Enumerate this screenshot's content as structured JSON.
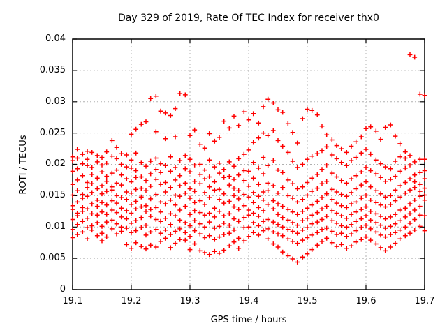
{
  "chart_data": {
    "type": "scatter",
    "title": "Day 329 of 2019, Rate Of TEC Index for receiver thx0",
    "xlabel": "GPS time / hours",
    "ylabel": "ROTI / TECUs",
    "xlim": [
      19.1,
      19.7
    ],
    "ylim": [
      0,
      0.04
    ],
    "xticks": [
      19.1,
      19.2,
      19.3,
      19.4,
      19.5,
      19.6,
      19.7
    ],
    "xtick_labels": [
      "19.1",
      "19.2",
      "19.3",
      "19.4",
      "19.5",
      "19.6",
      "19.7"
    ],
    "yticks": [
      0,
      0.005,
      0.01,
      0.015,
      0.02,
      0.025,
      0.03,
      0.035,
      0.04
    ],
    "ytick_labels": [
      "0",
      "0.005",
      "0.01",
      "0.015",
      "0.02",
      "0.025",
      "0.03",
      "0.035",
      "0.04"
    ],
    "grid": true,
    "legend": "none",
    "marker": "plus",
    "marker_color": "#ff0000",
    "grid_color": "#b0b0b0",
    "border_color": "#000000",
    "columns": [
      {
        "t": 19.1,
        "y": [
          0.0083,
          0.0096,
          0.0112,
          0.0128,
          0.0134,
          0.0151,
          0.0168,
          0.0189,
          0.0212,
          0.0206
        ]
      },
      {
        "t": 19.108,
        "y": [
          0.0088,
          0.0104,
          0.0118,
          0.0122,
          0.014,
          0.0158,
          0.0175,
          0.0193,
          0.021,
          0.0224
        ]
      },
      {
        "t": 19.117,
        "y": [
          0.0092,
          0.0109,
          0.0125,
          0.0131,
          0.0146,
          0.0152,
          0.0182,
          0.0201,
          0.0216
        ]
      },
      {
        "t": 19.125,
        "y": [
          0.0081,
          0.0099,
          0.0114,
          0.0129,
          0.0149,
          0.0163,
          0.0171,
          0.0198,
          0.0208,
          0.0221
        ]
      },
      {
        "t": 19.133,
        "y": [
          0.0095,
          0.0102,
          0.0121,
          0.0137,
          0.0155,
          0.0169,
          0.0184,
          0.0195,
          0.0219
        ]
      },
      {
        "t": 19.142,
        "y": [
          0.0086,
          0.0107,
          0.0119,
          0.0133,
          0.0143,
          0.0161,
          0.0178,
          0.0204,
          0.0214
        ]
      },
      {
        "t": 19.15,
        "y": [
          0.0078,
          0.009,
          0.0101,
          0.0124,
          0.0139,
          0.0153,
          0.0166,
          0.0188,
          0.0199,
          0.0211
        ]
      },
      {
        "t": 19.158,
        "y": [
          0.0084,
          0.0108,
          0.012,
          0.0135,
          0.0157,
          0.0173,
          0.0181,
          0.0202,
          0.022
        ]
      },
      {
        "t": 19.167,
        "y": [
          0.0097,
          0.0111,
          0.0127,
          0.0142,
          0.0159,
          0.0164,
          0.0186,
          0.0213,
          0.0238
        ]
      },
      {
        "t": 19.175,
        "y": [
          0.0089,
          0.0105,
          0.0123,
          0.0138,
          0.015,
          0.017,
          0.0191,
          0.0209,
          0.0227
        ]
      },
      {
        "t": 19.183,
        "y": [
          0.0093,
          0.01,
          0.0116,
          0.013,
          0.0147,
          0.0167,
          0.0183,
          0.02,
          0.0217
        ]
      },
      {
        "t": 19.192,
        "y": [
          0.0072,
          0.0098,
          0.0113,
          0.0126,
          0.0144,
          0.0156,
          0.0177,
          0.0196,
          0.0215
        ]
      },
      {
        "t": 19.2,
        "y": [
          0.0066,
          0.0091,
          0.0106,
          0.0122,
          0.0136,
          0.0154,
          0.0172,
          0.0194,
          0.0207,
          0.0248
        ]
      },
      {
        "t": 19.208,
        "y": [
          0.0075,
          0.0094,
          0.011,
          0.0129,
          0.0141,
          0.016,
          0.0179,
          0.019,
          0.0218,
          0.0256
        ]
      },
      {
        "t": 19.217,
        "y": [
          0.0069,
          0.0099,
          0.0115,
          0.0132,
          0.0148,
          0.0162,
          0.018,
          0.0203,
          0.0264
        ]
      },
      {
        "t": 19.225,
        "y": [
          0.0065,
          0.0087,
          0.0103,
          0.0125,
          0.0134,
          0.0158,
          0.0174,
          0.0197,
          0.0268
        ]
      },
      {
        "t": 19.233,
        "y": [
          0.0071,
          0.0092,
          0.0117,
          0.0128,
          0.0145,
          0.0165,
          0.0185,
          0.0205,
          0.0305
        ]
      },
      {
        "t": 19.242,
        "y": [
          0.0068,
          0.0096,
          0.0112,
          0.0131,
          0.0152,
          0.0176,
          0.0192,
          0.021,
          0.0309,
          0.0252
        ]
      },
      {
        "t": 19.25,
        "y": [
          0.0077,
          0.009,
          0.0109,
          0.0124,
          0.014,
          0.0168,
          0.0187,
          0.0201,
          0.0285
        ]
      },
      {
        "t": 19.258,
        "y": [
          0.0082,
          0.0095,
          0.0114,
          0.0137,
          0.0156,
          0.0171,
          0.0198,
          0.0282,
          0.0241
        ]
      },
      {
        "t": 19.267,
        "y": [
          0.0067,
          0.0088,
          0.0104,
          0.0121,
          0.0143,
          0.0163,
          0.0189,
          0.0212,
          0.0278
        ]
      },
      {
        "t": 19.275,
        "y": [
          0.0074,
          0.0093,
          0.0118,
          0.0135,
          0.0151,
          0.0175,
          0.0195,
          0.0244,
          0.0289
        ]
      },
      {
        "t": 19.283,
        "y": [
          0.008,
          0.0097,
          0.0111,
          0.0127,
          0.0149,
          0.0166,
          0.0182,
          0.0206,
          0.0313
        ]
      },
      {
        "t": 19.292,
        "y": [
          0.0079,
          0.0091,
          0.0107,
          0.0133,
          0.0154,
          0.017,
          0.0193,
          0.0214,
          0.0311
        ]
      },
      {
        "t": 19.3,
        "y": [
          0.0064,
          0.0085,
          0.0102,
          0.012,
          0.0146,
          0.0161,
          0.0188,
          0.0208,
          0.0246
        ]
      },
      {
        "t": 19.308,
        "y": [
          0.0073,
          0.0094,
          0.011,
          0.0126,
          0.0139,
          0.0157,
          0.0173,
          0.0199,
          0.0255
        ]
      },
      {
        "t": 19.317,
        "y": [
          0.0062,
          0.0089,
          0.0105,
          0.0123,
          0.0142,
          0.0169,
          0.0184,
          0.02,
          0.0232
        ]
      },
      {
        "t": 19.325,
        "y": [
          0.0059,
          0.0083,
          0.01,
          0.0119,
          0.0136,
          0.0155,
          0.0177,
          0.0191,
          0.0226
        ]
      },
      {
        "t": 19.333,
        "y": [
          0.0056,
          0.0086,
          0.0108,
          0.0122,
          0.0147,
          0.0164,
          0.018,
          0.0207,
          0.0249
        ]
      },
      {
        "t": 19.342,
        "y": [
          0.0061,
          0.008,
          0.0098,
          0.0116,
          0.013,
          0.0159,
          0.0172,
          0.0196,
          0.0237
        ]
      },
      {
        "t": 19.35,
        "y": [
          0.0058,
          0.0084,
          0.0101,
          0.0125,
          0.0144,
          0.016,
          0.0186,
          0.0202,
          0.0243
        ]
      },
      {
        "t": 19.358,
        "y": [
          0.0063,
          0.0088,
          0.0106,
          0.0118,
          0.0138,
          0.0153,
          0.0179,
          0.0192,
          0.0269
        ]
      },
      {
        "t": 19.367,
        "y": [
          0.007,
          0.009,
          0.0103,
          0.0121,
          0.0141,
          0.0167,
          0.0181,
          0.0204,
          0.0258
        ]
      },
      {
        "t": 19.375,
        "y": [
          0.0076,
          0.0095,
          0.0113,
          0.0132,
          0.015,
          0.0162,
          0.0176,
          0.0197,
          0.0277
        ]
      },
      {
        "t": 19.383,
        "y": [
          0.0066,
          0.0082,
          0.0109,
          0.0128,
          0.0145,
          0.0158,
          0.0183,
          0.0209,
          0.0262
        ]
      },
      {
        "t": 19.392,
        "y": [
          0.0078,
          0.0099,
          0.0115,
          0.0134,
          0.0152,
          0.0174,
          0.019,
          0.0216,
          0.0284
        ]
      },
      {
        "t": 19.4,
        "y": [
          0.0085,
          0.01,
          0.0119,
          0.0127,
          0.0148,
          0.0165,
          0.0189,
          0.0223,
          0.0271
        ]
      },
      {
        "t": 19.408,
        "y": [
          0.0091,
          0.0107,
          0.0122,
          0.0139,
          0.0155,
          0.0178,
          0.0203,
          0.0235,
          0.0281
        ]
      },
      {
        "t": 19.417,
        "y": [
          0.0087,
          0.0102,
          0.0117,
          0.0131,
          0.0149,
          0.0168,
          0.0194,
          0.0242,
          0.0266
        ]
      },
      {
        "t": 19.425,
        "y": [
          0.0094,
          0.0109,
          0.0126,
          0.0143,
          0.0156,
          0.0185,
          0.0211,
          0.025,
          0.0292
        ]
      },
      {
        "t": 19.433,
        "y": [
          0.0081,
          0.0097,
          0.0112,
          0.0136,
          0.0158,
          0.017,
          0.0198,
          0.0246,
          0.0304
        ]
      },
      {
        "t": 19.442,
        "y": [
          0.0073,
          0.0092,
          0.0108,
          0.0129,
          0.0142,
          0.0166,
          0.0206,
          0.0254,
          0.0298
        ]
      },
      {
        "t": 19.45,
        "y": [
          0.0068,
          0.0089,
          0.0104,
          0.012,
          0.0137,
          0.0154,
          0.0191,
          0.0238,
          0.0287
        ]
      },
      {
        "t": 19.458,
        "y": [
          0.006,
          0.0086,
          0.01,
          0.0115,
          0.0133,
          0.0163,
          0.0187,
          0.0229,
          0.0283
        ]
      },
      {
        "t": 19.467,
        "y": [
          0.0054,
          0.0081,
          0.0096,
          0.0111,
          0.0128,
          0.015,
          0.0175,
          0.0219,
          0.0265
        ]
      },
      {
        "t": 19.475,
        "y": [
          0.0049,
          0.0077,
          0.0093,
          0.0107,
          0.0124,
          0.0146,
          0.0169,
          0.0205,
          0.0251
        ]
      },
      {
        "t": 19.483,
        "y": [
          0.0044,
          0.0074,
          0.009,
          0.0103,
          0.012,
          0.014,
          0.0161,
          0.0195,
          0.0234
        ]
      },
      {
        "t": 19.492,
        "y": [
          0.0052,
          0.0079,
          0.0095,
          0.011,
          0.0125,
          0.0144,
          0.0164,
          0.02,
          0.0273
        ]
      },
      {
        "t": 19.5,
        "y": [
          0.0057,
          0.0083,
          0.0099,
          0.0114,
          0.013,
          0.0151,
          0.0171,
          0.0208,
          0.0288
        ]
      },
      {
        "t": 19.508,
        "y": [
          0.0064,
          0.0087,
          0.0105,
          0.0119,
          0.0135,
          0.0157,
          0.0178,
          0.0213,
          0.0286
        ]
      },
      {
        "t": 19.517,
        "y": [
          0.0071,
          0.0091,
          0.0108,
          0.0123,
          0.0141,
          0.0162,
          0.0184,
          0.0217,
          0.0279
        ]
      },
      {
        "t": 19.525,
        "y": [
          0.0077,
          0.0096,
          0.0112,
          0.0129,
          0.0147,
          0.0169,
          0.0192,
          0.0222,
          0.0261
        ]
      },
      {
        "t": 19.533,
        "y": [
          0.0082,
          0.0098,
          0.0117,
          0.0133,
          0.0153,
          0.0173,
          0.0199,
          0.0228,
          0.0247
        ]
      },
      {
        "t": 19.542,
        "y": [
          0.0075,
          0.0093,
          0.011,
          0.0126,
          0.0144,
          0.016,
          0.0186,
          0.0215,
          0.0239
        ]
      },
      {
        "t": 19.55,
        "y": [
          0.0069,
          0.0088,
          0.0106,
          0.0122,
          0.0138,
          0.0156,
          0.018,
          0.0209,
          0.023
        ]
      },
      {
        "t": 19.558,
        "y": [
          0.0072,
          0.009,
          0.0102,
          0.0118,
          0.0134,
          0.0152,
          0.0174,
          0.0203,
          0.0225
        ]
      },
      {
        "t": 19.567,
        "y": [
          0.0066,
          0.0085,
          0.01,
          0.0114,
          0.0131,
          0.0149,
          0.017,
          0.0198,
          0.0219
        ]
      },
      {
        "t": 19.575,
        "y": [
          0.007,
          0.0089,
          0.0104,
          0.012,
          0.0137,
          0.0155,
          0.0177,
          0.0206,
          0.0229
        ]
      },
      {
        "t": 19.583,
        "y": [
          0.0076,
          0.0094,
          0.0109,
          0.0124,
          0.014,
          0.0161,
          0.0182,
          0.0211,
          0.0236
        ]
      },
      {
        "t": 19.592,
        "y": [
          0.008,
          0.0099,
          0.0113,
          0.0128,
          0.0146,
          0.0167,
          0.0188,
          0.0218,
          0.0244
        ]
      },
      {
        "t": 19.6,
        "y": [
          0.0084,
          0.0103,
          0.0118,
          0.0132,
          0.0151,
          0.0172,
          0.0195,
          0.0224,
          0.0257
        ]
      },
      {
        "t": 19.608,
        "y": [
          0.0079,
          0.0097,
          0.0111,
          0.0125,
          0.0143,
          0.0164,
          0.019,
          0.0216,
          0.026
        ]
      },
      {
        "t": 19.617,
        "y": [
          0.0073,
          0.0092,
          0.0107,
          0.0121,
          0.0139,
          0.0158,
          0.0185,
          0.0207,
          0.0253
        ]
      },
      {
        "t": 19.625,
        "y": [
          0.0067,
          0.0087,
          0.0103,
          0.0117,
          0.0135,
          0.0153,
          0.0179,
          0.0201,
          0.024
        ]
      },
      {
        "t": 19.633,
        "y": [
          0.0062,
          0.0084,
          0.0098,
          0.0113,
          0.0132,
          0.0148,
          0.0173,
          0.0196,
          0.0259
        ]
      },
      {
        "t": 19.642,
        "y": [
          0.0068,
          0.0088,
          0.0101,
          0.0116,
          0.0136,
          0.015,
          0.0176,
          0.0193,
          0.0263
        ]
      },
      {
        "t": 19.65,
        "y": [
          0.0074,
          0.0091,
          0.0105,
          0.012,
          0.0142,
          0.0159,
          0.0181,
          0.0205,
          0.0245
        ]
      },
      {
        "t": 19.658,
        "y": [
          0.0081,
          0.0095,
          0.011,
          0.0127,
          0.0148,
          0.0166,
          0.0189,
          0.0212,
          0.0233
        ]
      },
      {
        "t": 19.667,
        "y": [
          0.0086,
          0.01,
          0.0116,
          0.013,
          0.0154,
          0.0171,
          0.0194,
          0.021,
          0.022
        ]
      },
      {
        "t": 19.675,
        "y": [
          0.009,
          0.0106,
          0.0121,
          0.0137,
          0.0159,
          0.0177,
          0.0199,
          0.0214,
          0.0375
        ]
      },
      {
        "t": 19.683,
        "y": [
          0.0095,
          0.0112,
          0.0127,
          0.0143,
          0.0163,
          0.0183,
          0.0204,
          0.0172,
          0.0371
        ]
      },
      {
        "t": 19.692,
        "y": [
          0.0101,
          0.0119,
          0.0133,
          0.0149,
          0.0168,
          0.0187,
          0.0208,
          0.0157,
          0.0312
        ]
      },
      {
        "t": 19.7,
        "y": [
          0.0094,
          0.0118,
          0.0143,
          0.0151,
          0.0162,
          0.0177,
          0.019,
          0.0208,
          0.031
        ]
      }
    ]
  }
}
